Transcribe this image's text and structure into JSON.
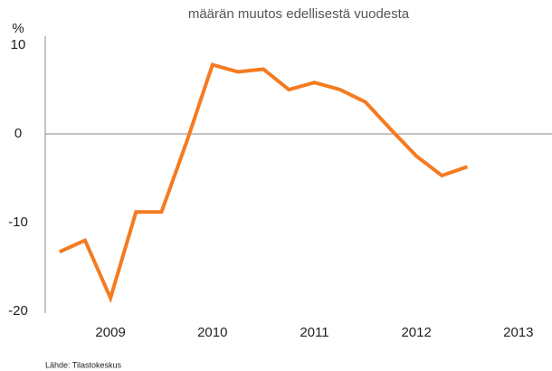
{
  "chart_data": {
    "type": "line",
    "title": "määrän muutos edellisestä vuodesta",
    "y_label": "%",
    "source": "Lähde: Tilastokeskus",
    "x": [
      2008.5,
      2008.75,
      2009,
      2009.25,
      2009.5,
      2009.75,
      2010,
      2010.25,
      2010.5,
      2010.75,
      2011,
      2011.25,
      2011.5,
      2011.75,
      2012,
      2012.25,
      2012.5
    ],
    "series": [
      {
        "color": "#f47b20",
        "values": [
          -13.3,
          -12,
          -18.5,
          -8.8,
          -8.8,
          -0.8,
          7.8,
          7,
          7.3,
          5,
          5.8,
          5,
          3.6,
          0.5,
          -2.5,
          -4.7,
          -3.7
        ]
      }
    ],
    "xlim": [
      2008.36,
      2013.33
    ],
    "xticks": [
      2009,
      2010,
      2011,
      2012,
      2013
    ],
    "ylim": [
      -20,
      10
    ],
    "yticks": [
      10,
      0,
      -10,
      -20
    ]
  }
}
